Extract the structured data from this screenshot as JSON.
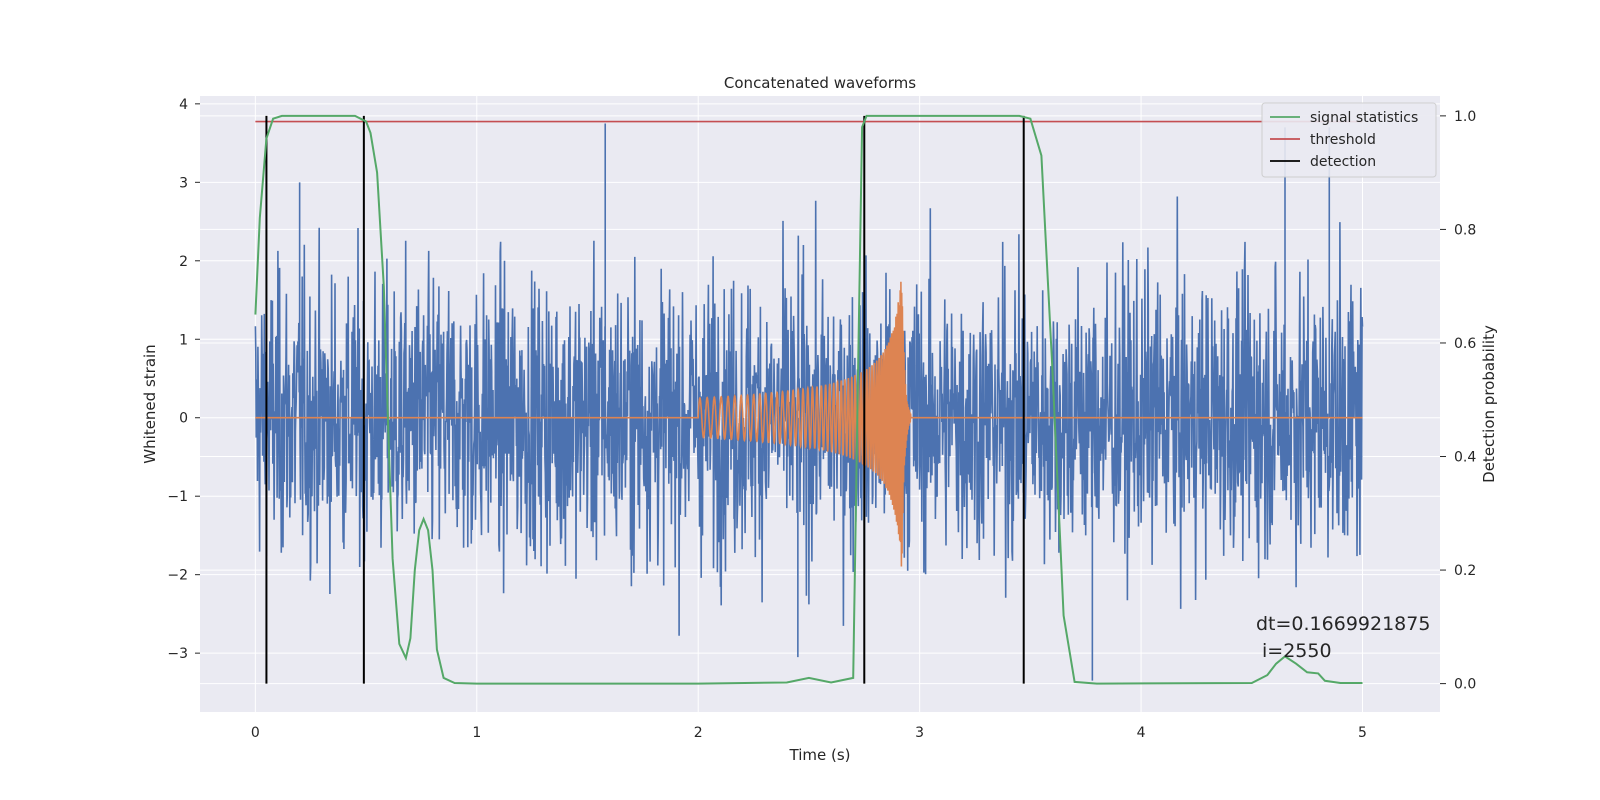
{
  "chart_data": {
    "type": "line",
    "title": "Concatenated waveforms",
    "xlabel": "Time (s)",
    "ylabel_left": "Whitened strain",
    "ylabel_right": "Detection probability",
    "xlim": [
      -0.25,
      5.35
    ],
    "ylim_left": [
      -3.75,
      4.1
    ],
    "ylim_right": [
      -0.05,
      1.035
    ],
    "x_ticks": [
      0,
      1,
      2,
      3,
      4,
      5
    ],
    "y_left_ticks": [
      -3,
      -2,
      -1,
      0,
      1,
      2,
      3,
      4
    ],
    "y_right_ticks": [
      0.0,
      0.2,
      0.4,
      0.6,
      0.8,
      1.0
    ],
    "grid": true,
    "legend_position": "top-right",
    "series": [
      {
        "name": "",
        "role": "whitened-noise",
        "axis": "left",
        "color": "#4c72b0",
        "x_range": [
          0,
          5
        ],
        "typical_amplitude": 2.0,
        "peak_values": [
          {
            "x": 1.58,
            "y": 3.75
          },
          {
            "x": 3.78,
            "y": -3.35
          },
          {
            "x": 4.65,
            "y": 3.7
          },
          {
            "x": 4.85,
            "y": 3.7
          },
          {
            "x": 2.45,
            "y": -3.05
          },
          {
            "x": 0.2,
            "y": 3.0
          }
        ]
      },
      {
        "name": "",
        "role": "injected-chirp",
        "axis": "left",
        "color": "#dd8452",
        "start": 2.0,
        "merger": 2.92,
        "end": 2.96,
        "start_amplitude": 0.25,
        "peak_amplitude": 1.9
      },
      {
        "name": "signal statistics",
        "axis": "right",
        "color": "#55a868",
        "x": [
          0.0,
          0.02,
          0.05,
          0.08,
          0.12,
          0.3,
          0.45,
          0.5,
          0.52,
          0.55,
          0.58,
          0.6,
          0.62,
          0.65,
          0.68,
          0.7,
          0.72,
          0.74,
          0.76,
          0.78,
          0.8,
          0.82,
          0.85,
          0.9,
          1.0,
          2.0,
          2.4,
          2.5,
          2.6,
          2.7,
          2.72,
          2.74,
          2.76,
          2.8,
          3.0,
          3.45,
          3.5,
          3.55,
          3.6,
          3.65,
          3.7,
          3.8,
          4.5,
          4.57,
          4.61,
          4.65,
          4.7,
          4.75,
          4.8,
          4.83,
          4.9,
          5.0
        ],
        "y": [
          0.65,
          0.82,
          0.96,
          0.995,
          1.0,
          1.0,
          1.0,
          0.99,
          0.97,
          0.9,
          0.7,
          0.45,
          0.22,
          0.07,
          0.045,
          0.08,
          0.2,
          0.27,
          0.29,
          0.27,
          0.2,
          0.06,
          0.01,
          0.001,
          0.0,
          0.0,
          0.002,
          0.01,
          0.002,
          0.01,
          0.5,
          0.98,
          1.0,
          1.0,
          1.0,
          1.0,
          0.995,
          0.93,
          0.55,
          0.12,
          0.003,
          0.0,
          0.001,
          0.015,
          0.035,
          0.048,
          0.035,
          0.02,
          0.018,
          0.005,
          0.001,
          0.001
        ]
      },
      {
        "name": "threshold",
        "axis": "right",
        "color": "#c44e52",
        "x": [
          0,
          5
        ],
        "y": [
          0.99,
          0.99
        ]
      },
      {
        "name": "detection",
        "axis": "right",
        "color": "#000000",
        "type": "vlines",
        "x": [
          0.05,
          0.49,
          2.75,
          3.47
        ],
        "y_range": [
          0,
          1
        ]
      }
    ],
    "annotations": [
      "dt=0.1669921875",
      "i=2550"
    ]
  }
}
